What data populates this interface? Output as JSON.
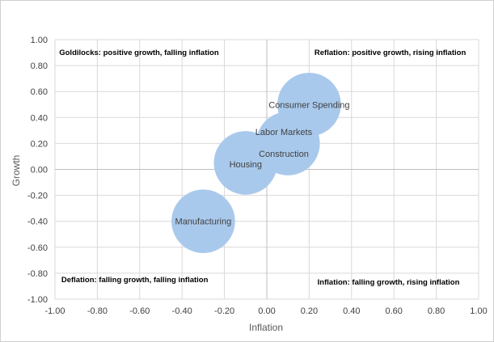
{
  "chart_data": {
    "type": "bubble",
    "title": "",
    "xlabel": "Inflation",
    "ylabel": "Growth",
    "xlim": [
      -1.0,
      1.0
    ],
    "ylim": [
      -1.0,
      1.0
    ],
    "tick_step": 0.2,
    "x_ticks": [
      "-1.00",
      "-0.80",
      "-0.60",
      "-0.40",
      "-0.20",
      "0.00",
      "0.20",
      "0.40",
      "0.60",
      "0.80",
      "1.00"
    ],
    "y_ticks": [
      "1.00",
      "0.80",
      "0.60",
      "0.40",
      "0.20",
      "0.00",
      "-0.20",
      "-0.40",
      "-0.60",
      "-0.80",
      "-1.00"
    ],
    "grid": true,
    "bubble_color": "#a9c9ec",
    "series": [
      {
        "points": [
          {
            "label": "Consumer Spending",
            "x": 0.2,
            "y": 0.5,
            "r": 0.15
          },
          {
            "label": "Labor Markets",
            "x": 0.1,
            "y": 0.2,
            "r": 0.15
          },
          {
            "label": "Construction",
            "x": 0.1,
            "y": 0.2,
            "r": 0.15
          },
          {
            "label": "Housing",
            "x": -0.1,
            "y": 0.05,
            "r": 0.15
          },
          {
            "label": "Manufacturing",
            "x": -0.3,
            "y": -0.4,
            "r": 0.15
          }
        ]
      }
    ],
    "point_labels": [
      {
        "text": "Consumer Spending",
        "x": 0.2,
        "y": 0.5
      },
      {
        "text": "Labor Markets",
        "x": 0.08,
        "y": 0.29
      },
      {
        "text": "Construction",
        "x": 0.08,
        "y": 0.12
      },
      {
        "text": "Housing",
        "x": -0.1,
        "y": 0.04
      },
      {
        "text": "Manufacturing",
        "x": -0.3,
        "y": -0.4
      }
    ],
    "annotations": [
      {
        "text": "Goldilocks: positive growth, falling inflation",
        "x": -0.98,
        "y": 0.9,
        "anchor": "start"
      },
      {
        "text": "Reflation: positive growth, rising inflation",
        "x": 0.94,
        "y": 0.9,
        "anchor": "end"
      },
      {
        "text": "Deflation: falling growth, falling inflation",
        "x": -0.97,
        "y": -0.85,
        "anchor": "start"
      },
      {
        "text": "Inflation: falling growth, rising inflation",
        "x": 0.91,
        "y": -0.87,
        "anchor": "end"
      }
    ]
  }
}
